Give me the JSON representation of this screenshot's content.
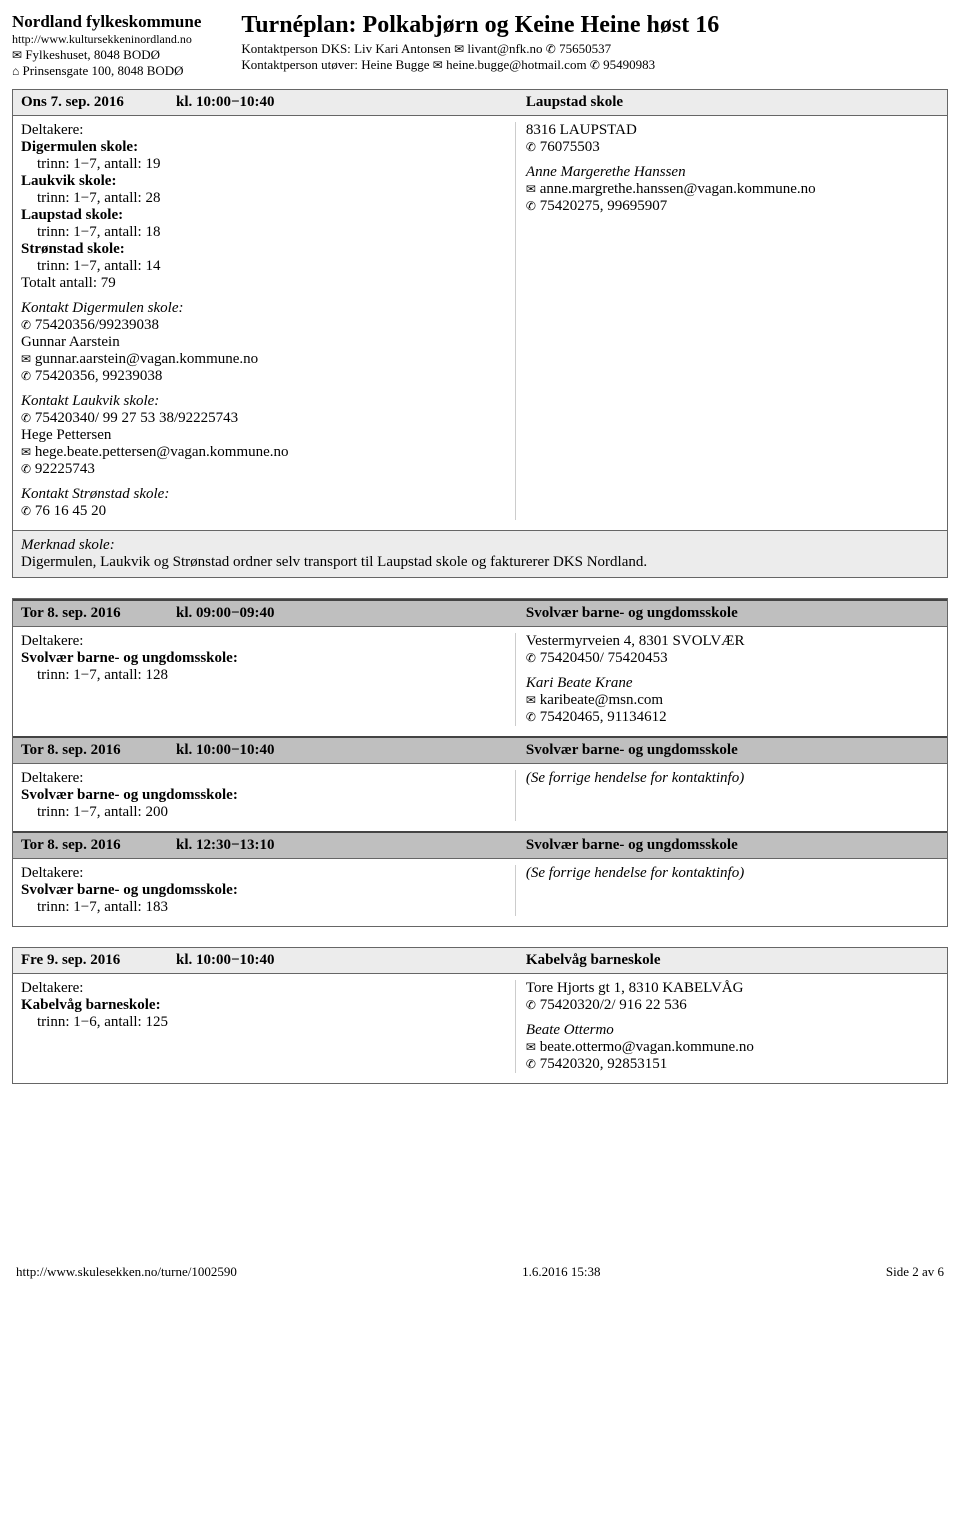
{
  "header": {
    "org_name": "Nordland fylkeskommune",
    "org_url": "http://www.kultursekkeninordland.no",
    "postal": "Fylkeshuset, 8048 BODØ",
    "visit": "Prinsensgate 100, 8048 BODØ",
    "tour_title": "Turnéplan: Polkabjørn og Keine Heine høst 16",
    "contact_dks_label": "Kontaktperson DKS:",
    "contact_dks_name": "Liv Kari Antonsen",
    "contact_dks_email": "livant@nfk.no",
    "contact_dks_phone": "75650537",
    "contact_perf_label": "Kontaktperson utøver:",
    "contact_perf_name": "Heine Bugge",
    "contact_perf_email": "heine.bugge@hotmail.com",
    "contact_perf_phone": "95490983"
  },
  "labels": {
    "participants": "Deltakere:",
    "note_school": "Merknad skole:",
    "see_prev": "(Se forrige hendelse for kontaktinfo)"
  },
  "event1": {
    "date": "Ons 7. sep. 2016",
    "time": "kl. 10:00−10:40",
    "venue": "Laupstad skole",
    "schools": {
      "s1_name": "Digermulen skole:",
      "s1_detail": "trinn: 1−7, antall: 19",
      "s2_name": "Laukvik skole:",
      "s2_detail": "trinn: 1−7, antall: 28",
      "s3_name": "Laupstad skole:",
      "s3_detail": "trinn: 1−7, antall: 18",
      "s4_name": "Strønstad skole:",
      "s4_detail": "trinn: 1−7, antall: 14",
      "total": "Totalt antall: 79"
    },
    "contacts": {
      "c1_title": "Kontakt Digermulen skole:",
      "c1_phone": "75420356/99239038",
      "c1_name": "Gunnar Aarstein",
      "c1_email": "gunnar.aarstein@vagan.kommune.no",
      "c1_phone2": "75420356, 99239038",
      "c2_title": "Kontakt Laukvik skole:",
      "c2_phone": "75420340/ 99 27 53 38/92225743",
      "c2_name": "Hege Pettersen",
      "c2_email": "hege.beate.pettersen@vagan.kommune.no",
      "c2_phone2": "92225743",
      "c3_title": "Kontakt Strønstad skole:",
      "c3_phone": "76 16 45 20"
    },
    "right": {
      "address": "8316 LAUPSTAD",
      "phone": "76075503",
      "person": "Anne Margerethe Hanssen",
      "email": "anne.margrethe.hanssen@vagan.kommune.no",
      "phone2": "75420275, 99695907"
    },
    "note_text": "Digermulen, Laukvik og Strønstad ordner selv transport til Laupstad skole og fakturerer DKS Nordland."
  },
  "event2": {
    "date": "Tor 8. sep. 2016",
    "time": "kl. 09:00−09:40",
    "venue": "Svolvær barne- og ungdomsskole",
    "school_name": "Svolvær barne- og ungdomsskole:",
    "school_detail": "trinn: 1−7, antall: 128",
    "right": {
      "address": "Vestermyrveien 4, 8301 SVOLVÆR",
      "phone": "75420450/ 75420453",
      "person": "Kari Beate Krane",
      "email": "karibeate@msn.com",
      "phone2": "75420465, 91134612"
    }
  },
  "event3": {
    "date": "Tor 8. sep. 2016",
    "time": "kl. 10:00−10:40",
    "venue": "Svolvær barne- og ungdomsskole",
    "school_name": "Svolvær barne- og ungdomsskole:",
    "school_detail": "trinn: 1−7, antall: 200"
  },
  "event4": {
    "date": "Tor 8. sep. 2016",
    "time": "kl. 12:30−13:10",
    "venue": "Svolvær barne- og ungdomsskole",
    "school_name": "Svolvær barne- og ungdomsskole:",
    "school_detail": "trinn: 1−7, antall: 183"
  },
  "event5": {
    "date": "Fre 9. sep. 2016",
    "time": "kl. 10:00−10:40",
    "venue": "Kabelvåg barneskole",
    "school_name": "Kabelvåg barneskole:",
    "school_detail": "trinn: 1−6, antall: 125",
    "right": {
      "address": "Tore Hjorts gt 1, 8310 KABELVÅG",
      "phone": "75420320/2/ 916 22 536",
      "person": "Beate Ottermo",
      "email": "beate.ottermo@vagan.kommune.no",
      "phone2": "75420320, 92853151"
    }
  },
  "footer": {
    "url": "http://www.skulesekken.no/turne/1002590",
    "timestamp": "1.6.2016 15:38",
    "page": "Side 2 av 6"
  }
}
